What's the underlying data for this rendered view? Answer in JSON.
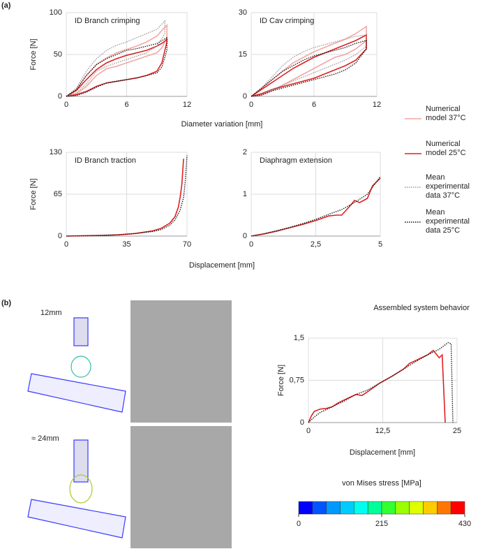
{
  "figure": {
    "panel_a": "(a)",
    "panel_b": "(b)",
    "sim_label_1": "12mm",
    "sim_label_2": "≈ 24mm",
    "legend": [
      {
        "name": "Numerical model 37°C",
        "color": "#f4a6a6",
        "dash": "solid"
      },
      {
        "name": "Numerical model 25°C",
        "color": "#e02020",
        "dash": "solid"
      },
      {
        "name": "Mean experimental data 37°C",
        "color": "#999999",
        "dash": "dotted"
      },
      {
        "name": "Mean experimental data 25°C",
        "color": "#111111",
        "dash": "dotted"
      }
    ]
  },
  "chart_data": [
    {
      "type": "line",
      "title": "ID Branch crimping",
      "ylabel": "Force [N]",
      "xlabel": "Diameter variation [mm]",
      "grid": true,
      "xlim": [
        0,
        12
      ],
      "ylim": [
        0,
        100
      ],
      "xticks": [
        0,
        6,
        12
      ],
      "yticks": [
        0,
        50,
        100
      ],
      "series": [
        {
          "color": "#f4a6a6",
          "dash": "solid",
          "x": [
            0,
            1,
            2,
            3,
            4,
            5,
            6,
            7,
            8,
            9,
            9.6,
            10,
            10,
            9.5,
            9,
            8,
            7,
            6,
            5,
            4,
            3,
            2,
            1,
            0
          ],
          "values": [
            0,
            8,
            25,
            38,
            46,
            52,
            56,
            60,
            65,
            72,
            80,
            85,
            70,
            58,
            52,
            48,
            44,
            40,
            36,
            33,
            25,
            12,
            3,
            0
          ]
        },
        {
          "color": "#e02020",
          "dash": "solid",
          "x": [
            0,
            1,
            2,
            3,
            4,
            5,
            6,
            7,
            8,
            9,
            9.6,
            10,
            10,
            9.5,
            9,
            8,
            7,
            6,
            5,
            4,
            3,
            2,
            1,
            0
          ],
          "values": [
            0,
            7,
            20,
            32,
            40,
            45,
            49,
            52,
            55,
            60,
            64,
            68,
            65,
            40,
            30,
            25,
            22,
            20,
            18,
            16,
            12,
            6,
            2,
            0
          ]
        },
        {
          "color": "#999999",
          "dash": "dotted",
          "x": [
            0,
            1,
            2,
            3,
            4,
            5,
            6,
            7,
            8,
            9,
            9.8,
            9.8,
            9,
            8,
            7,
            6,
            5,
            4,
            3,
            2,
            1,
            0
          ],
          "values": [
            0,
            10,
            30,
            45,
            55,
            61,
            65,
            70,
            75,
            80,
            90,
            75,
            60,
            52,
            48,
            44,
            40,
            36,
            30,
            15,
            4,
            0
          ]
        },
        {
          "color": "#111111",
          "dash": "dotted",
          "x": [
            0,
            1,
            2,
            3,
            4,
            5,
            6,
            7,
            8,
            9,
            10,
            10,
            9.5,
            9,
            8,
            7,
            6,
            5,
            4,
            3,
            2,
            1,
            0
          ],
          "values": [
            0,
            8,
            25,
            38,
            45,
            50,
            55,
            57,
            60,
            63,
            70,
            55,
            35,
            28,
            25,
            22,
            20,
            18,
            16,
            11,
            5,
            1,
            0
          ]
        }
      ]
    },
    {
      "type": "line",
      "title": "ID Cav crimping",
      "grid": true,
      "xlim": [
        0,
        12
      ],
      "ylim": [
        0,
        30
      ],
      "xticks": [
        0,
        6,
        12
      ],
      "yticks": [
        0,
        15,
        30
      ],
      "series": [
        {
          "color": "#f4a6a6",
          "dash": "solid",
          "x": [
            0,
            1,
            2,
            3,
            4,
            5,
            6,
            7,
            8,
            9,
            10,
            11,
            11,
            10,
            9,
            8,
            7,
            6,
            5,
            4,
            3,
            2,
            1,
            0
          ],
          "values": [
            0,
            3,
            6,
            9,
            12,
            14,
            16,
            17.5,
            19,
            20.5,
            22.5,
            25,
            20,
            17,
            15,
            14,
            12,
            10,
            8,
            6,
            4,
            2,
            0.5,
            0
          ]
        },
        {
          "color": "#e02020",
          "dash": "solid",
          "x": [
            0,
            1,
            2,
            3,
            4,
            5,
            6,
            7,
            8,
            9,
            10,
            11,
            11,
            10,
            9,
            8,
            7,
            6,
            5,
            4,
            3,
            2,
            1,
            0
          ],
          "values": [
            0,
            2.5,
            5,
            7.5,
            10,
            12,
            14,
            15.5,
            17,
            18.5,
            20,
            22,
            17,
            13,
            11,
            9.5,
            8,
            6.5,
            5.5,
            4.5,
            3.5,
            2.5,
            1,
            0
          ]
        },
        {
          "color": "#999999",
          "dash": "dotted",
          "x": [
            0,
            1,
            2,
            3,
            4,
            5,
            6,
            7,
            8,
            9,
            10,
            11,
            11,
            10,
            9,
            8,
            7,
            6,
            5,
            4,
            3,
            2,
            1,
            0
          ],
          "values": [
            0,
            3,
            7,
            11,
            14,
            16,
            17.5,
            18.5,
            19.5,
            20.5,
            21.5,
            22,
            18,
            15,
            13,
            11.5,
            10,
            8.5,
            7,
            5.5,
            4,
            2.5,
            0.5,
            0
          ]
        },
        {
          "color": "#111111",
          "dash": "dotted",
          "x": [
            0,
            1,
            2,
            3,
            4,
            5,
            6,
            7,
            8,
            9,
            10,
            11,
            11,
            10,
            9,
            8,
            7,
            6,
            5,
            4,
            3,
            2,
            1,
            0
          ],
          "values": [
            0,
            3,
            6,
            9,
            11,
            13,
            14.5,
            15.5,
            16.5,
            17.5,
            19,
            20,
            17,
            12,
            9.5,
            8,
            7,
            6,
            5,
            4,
            3,
            2,
            0.5,
            0
          ]
        }
      ]
    },
    {
      "type": "line",
      "title": "ID Branch traction",
      "ylabel": "Force [N]",
      "xlabel": "Displacement [mm]",
      "grid": true,
      "xlim": [
        0,
        70
      ],
      "ylim": [
        0,
        130
      ],
      "xticks": [
        0,
        35,
        70
      ],
      "yticks": [
        0,
        65,
        130
      ],
      "series": [
        {
          "color": "#e02020",
          "dash": "solid",
          "x": [
            0,
            10,
            20,
            30,
            40,
            50,
            55,
            60,
            63,
            65,
            66,
            67,
            67.5,
            68
          ],
          "values": [
            0,
            0.5,
            1,
            2,
            4,
            8,
            12,
            20,
            30,
            45,
            60,
            80,
            100,
            120
          ]
        },
        {
          "color": "#111111",
          "dash": "dotted",
          "x": [
            0,
            10,
            20,
            30,
            40,
            50,
            55,
            60,
            63,
            66,
            68,
            69,
            70
          ],
          "values": [
            0,
            0.5,
            1,
            2,
            4,
            7,
            10,
            17,
            25,
            40,
            60,
            85,
            125
          ]
        }
      ]
    },
    {
      "type": "line",
      "title": "Diaphragm extension",
      "grid": true,
      "xlim": [
        0,
        5
      ],
      "ylim": [
        0,
        2
      ],
      "xticks": [
        0,
        {
          "value": 2.5,
          "label": "2,5"
        },
        5
      ],
      "yticks": [
        0,
        1,
        2
      ],
      "series": [
        {
          "color": "#e02020",
          "dash": "solid",
          "x": [
            0,
            0.5,
            1,
            1.5,
            2,
            2.5,
            3,
            3.3,
            3.5,
            3.8,
            4,
            4.2,
            4.5,
            4.7,
            5
          ],
          "values": [
            0,
            0.05,
            0.12,
            0.2,
            0.28,
            0.37,
            0.48,
            0.5,
            0.5,
            0.7,
            0.85,
            0.8,
            0.9,
            1.2,
            1.38
          ]
        },
        {
          "color": "#111111",
          "dash": "dotted",
          "x": [
            0,
            0.5,
            1,
            1.5,
            2,
            2.5,
            3,
            3.5,
            4,
            4.5,
            5
          ],
          "values": [
            0,
            0.06,
            0.13,
            0.21,
            0.3,
            0.4,
            0.52,
            0.63,
            0.8,
            1.0,
            1.42
          ]
        }
      ]
    },
    {
      "type": "line",
      "title": "Assembled system behavior",
      "ylabel": "Force [N]",
      "xlabel": "Displacement [mm]",
      "grid": true,
      "xlim": [
        0,
        25
      ],
      "ylim": [
        0,
        1.5
      ],
      "xticks": [
        0,
        {
          "value": 12.5,
          "label": "12,5"
        },
        25
      ],
      "yticks": [
        0,
        {
          "value": 0.75,
          "label": "0,75"
        },
        {
          "value": 1.5,
          "label": "1,5"
        }
      ],
      "series": [
        {
          "color": "#e02020",
          "dash": "solid",
          "x": [
            0,
            0.5,
            1,
            2,
            3,
            4,
            5,
            6,
            7,
            8,
            9,
            10,
            12,
            14,
            16,
            17,
            18,
            19,
            20,
            21,
            22,
            22.5,
            23
          ],
          "values": [
            0,
            0.12,
            0.2,
            0.24,
            0.25,
            0.28,
            0.35,
            0.4,
            0.45,
            0.5,
            0.48,
            0.55,
            0.7,
            0.82,
            0.95,
            1.05,
            1.1,
            1.15,
            1.2,
            1.28,
            1.15,
            1.2,
            0
          ]
        },
        {
          "color": "#111111",
          "dash": "dotted",
          "x": [
            0,
            1,
            2,
            4,
            6,
            8,
            10,
            12,
            14,
            16,
            18,
            20,
            22,
            23.5,
            24,
            24.3
          ],
          "values": [
            0,
            0.1,
            0.18,
            0.28,
            0.38,
            0.5,
            0.58,
            0.7,
            0.82,
            0.95,
            1.08,
            1.2,
            1.3,
            1.42,
            1.4,
            0
          ]
        }
      ]
    },
    {
      "type": "colorbar",
      "title": "von Mises stress [MPa]",
      "xlim": [
        0,
        430
      ],
      "xticks": [
        0,
        215,
        430
      ],
      "colors": [
        "#0000ff",
        "#0055ff",
        "#0099ff",
        "#00ccff",
        "#00ffee",
        "#00ff99",
        "#33ff33",
        "#99ff00",
        "#ddff00",
        "#ffcc00",
        "#ff7700",
        "#ff0000"
      ]
    }
  ]
}
